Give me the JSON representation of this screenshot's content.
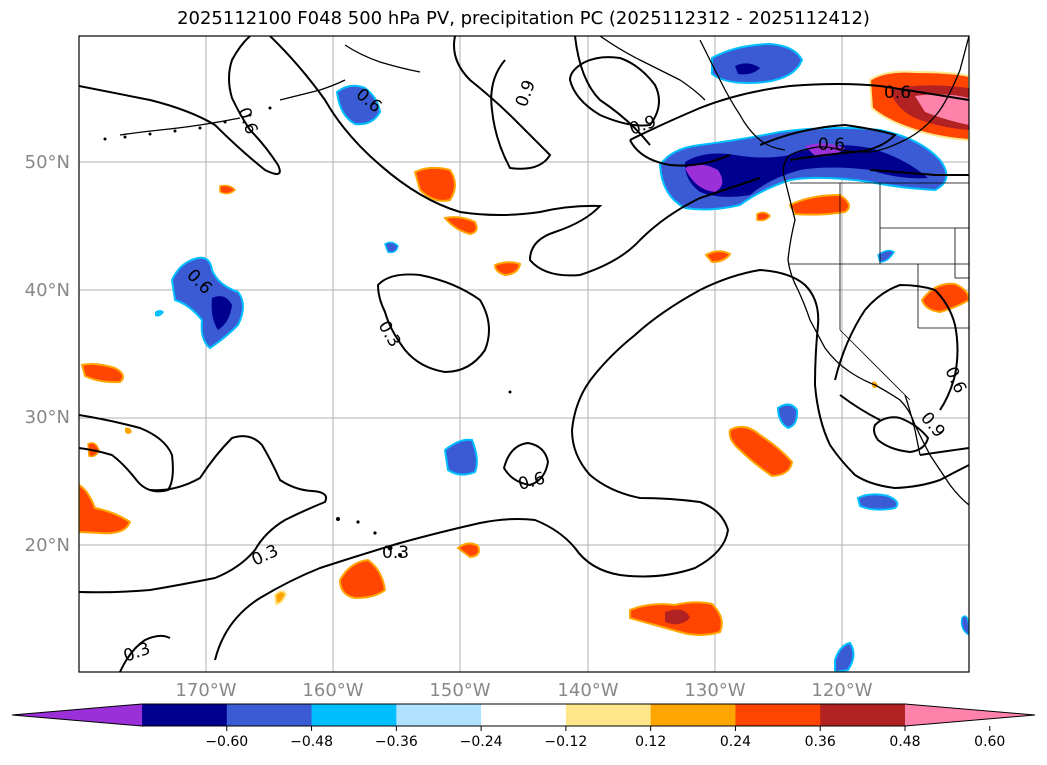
{
  "title": "2025112100 F048 500 hPa PV, precipitation PC (2025112312 - 2025112412)",
  "map": {
    "lat_labels": [
      "50°N",
      "40°N",
      "30°N",
      "20°N"
    ],
    "lon_labels": [
      "170°W",
      "160°W",
      "150°W",
      "140°W",
      "130°W",
      "120°W"
    ],
    "contour_labels": [
      "0.6",
      "0.9",
      "0.6",
      "0.3",
      "0.6",
      "0.3",
      "0.3",
      "0.3",
      "0.6",
      "0.9",
      "0.6",
      "0.6",
      "0.9",
      "0.6"
    ]
  },
  "colorbar": {
    "ticks": [
      "−0.60",
      "−0.48",
      "−0.36",
      "−0.24",
      "−0.12",
      "0.12",
      "0.24",
      "0.36",
      "0.48",
      "0.60"
    ],
    "colors": [
      "#9b30d9",
      "#000090",
      "#3a5bd4",
      "#00bfff",
      "#b0e2ff",
      "#ffffff",
      "#ffe68a",
      "#ffa500",
      "#ff4500",
      "#b22222",
      "#ff82ab"
    ]
  }
}
